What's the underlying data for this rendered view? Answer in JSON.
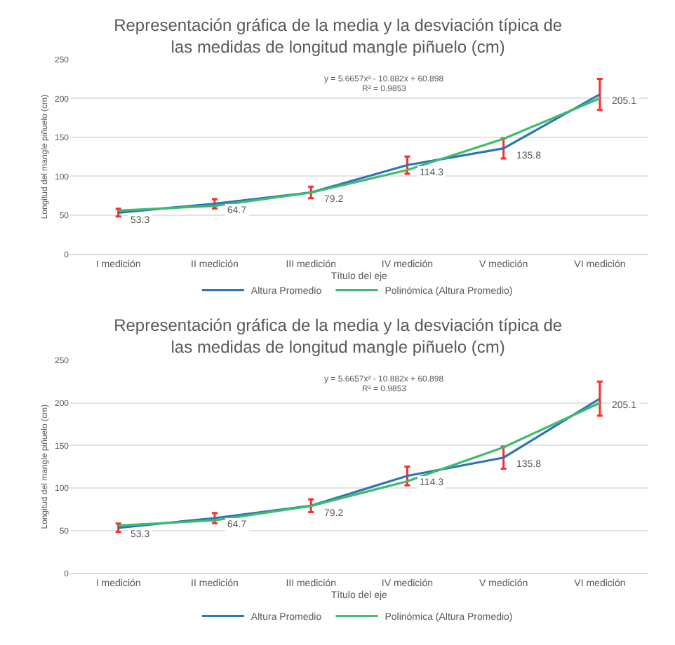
{
  "chart_data": [
    {
      "type": "line",
      "title": "Representación gráfica de la media y la desviación típica de las medidas de longitud mangle piñuelo (cm)",
      "xlabel": "Título del eje",
      "ylabel": "Longitud del mangle piñuelo (cm)",
      "categories": [
        "I medición",
        "II medición",
        "III medición",
        "IV medición",
        "V medición",
        "VI medición"
      ],
      "ylim": [
        0,
        250
      ],
      "yticks": [
        0,
        50,
        100,
        150,
        200,
        250
      ],
      "grid": "y",
      "legend": "bottom",
      "marker": "none",
      "line_style": "solid",
      "annotations": [
        "y = 5.6657x² - 10.882x + 60.898",
        "R² = 0.9853"
      ],
      "series": [
        {
          "name": "Altura Promedio",
          "color": "#2e75b6",
          "values": [
            53.3,
            64.7,
            79.2,
            114.3,
            135.8,
            205.1
          ],
          "errors": [
            5,
            6,
            7.5,
            11,
            13,
            20
          ],
          "value_labels": [
            "53.3",
            "64.7",
            "79.2",
            "114.3",
            "135.8",
            "205.1"
          ]
        },
        {
          "name": "Polinómica (Altura Promedio)",
          "type": "line",
          "color": "#3cbc6c",
          "values": [
            56,
            62,
            79,
            108,
            148,
            200
          ]
        }
      ]
    },
    {
      "type": "line",
      "title": "Representación gráfica de la media y la desviación típica de las medidas de longitud mangle piñuelo (cm)",
      "xlabel": "Título del eje",
      "ylabel": "Longitud del mangle piñuelo (cm)",
      "categories": [
        "I medición",
        "II medición",
        "III medición",
        "IV medición",
        "V medición",
        "VI medición"
      ],
      "ylim": [
        0,
        250
      ],
      "yticks": [
        0,
        50,
        100,
        150,
        200,
        250
      ],
      "grid": "y",
      "legend": "bottom",
      "marker": "none",
      "line_style": "solid",
      "annotations": [
        "y = 5.6657x² - 10.882x + 60.898",
        "R² = 0.9853"
      ],
      "series": [
        {
          "name": "Altura Promedio",
          "color": "#2e75b6",
          "values": [
            53.3,
            64.7,
            79.2,
            114.3,
            135.8,
            205.1
          ],
          "errors": [
            5,
            6,
            7.5,
            11,
            13,
            20
          ],
          "value_labels": [
            "53.3",
            "64.7",
            "79.2",
            "114.3",
            "135.8",
            "205.1"
          ]
        },
        {
          "name": "Polinómica (Altura Promedio)",
          "type": "line",
          "color": "#3cbc6c",
          "values": [
            56,
            62,
            79,
            108,
            148,
            200
          ]
        }
      ]
    }
  ]
}
